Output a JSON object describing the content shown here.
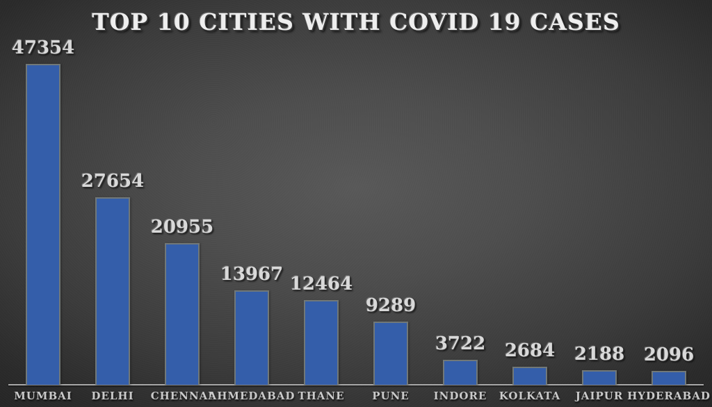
{
  "title": "TOP 10 CITIES WITH COVID 19 CASES",
  "colors": {
    "bar_fill": "#345eaa",
    "bar_border": "#7d7d70",
    "axis_line": "#a8a8a8",
    "background_center": "#595959",
    "background_edge": "#242424",
    "title_text": "#eeeeee",
    "value_text": "#d9d9d9",
    "label_text": "#c9c9c9"
  },
  "chart_data": {
    "type": "bar",
    "title": "TOP 10 CITIES WITH COVID 19 CASES",
    "categories": [
      "MUMBAI",
      "DELHI",
      "CHENNAI",
      "AHMEDABAD",
      "THANE",
      "PUNE",
      "INDORE",
      "KOLKATA",
      "JAIPUR",
      "HYDERABAD"
    ],
    "values": [
      47354,
      27654,
      20955,
      13967,
      12464,
      9289,
      3722,
      2684,
      2188,
      2096
    ],
    "xlabel": "",
    "ylabel": "",
    "ylim": [
      0,
      47354
    ],
    "grid": false,
    "legend": false,
    "value_labels_shown": true,
    "bar_orientation": "vertical"
  }
}
